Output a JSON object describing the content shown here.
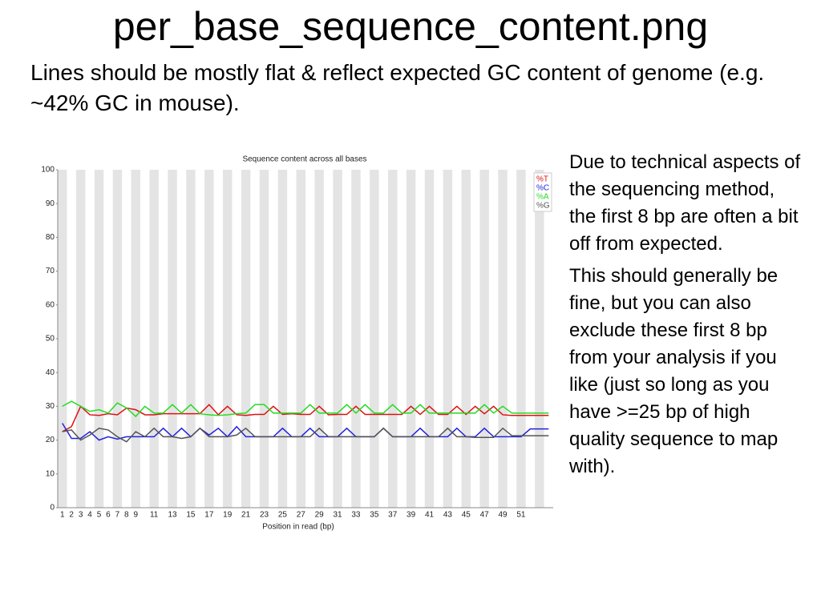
{
  "slide": {
    "title": "per_base_sequence_content.png",
    "subtitle": "Lines should be mostly flat & reflect expected GC content of genome (e.g. ~42% GC in mouse).",
    "notes": [
      "Due to technical aspects of the sequencing method, the first 8 bp are often a bit off from expected.",
      "This should generally be fine, but you can also exclude these first 8 bp from your analysis if you like (just so long as you have >=25 bp of high quality sequence to map with)."
    ]
  },
  "chart_data": {
    "type": "line",
    "title": "Sequence content across all bases",
    "x_label": "Position in read (bp)",
    "categories": [
      1,
      2,
      3,
      4,
      5,
      6,
      7,
      8,
      9,
      null,
      11,
      null,
      13,
      null,
      15,
      null,
      17,
      null,
      19,
      null,
      21,
      null,
      23,
      null,
      25,
      null,
      27,
      null,
      29,
      null,
      31,
      null,
      33,
      null,
      35,
      null,
      37,
      null,
      39,
      null,
      41,
      null,
      43,
      null,
      45,
      null,
      47,
      null,
      49,
      null,
      51,
      null,
      null,
      null
    ],
    "ylim": [
      0,
      100
    ],
    "yticks": [
      0,
      10,
      20,
      30,
      40,
      50,
      60,
      70,
      80,
      90,
      100
    ],
    "legend": "top-right",
    "stripes": true,
    "series": [
      {
        "name": "%T",
        "color": "#dd1111",
        "values": [
          22.5,
          24,
          30,
          27.5,
          27.3,
          27.8,
          27.5,
          29.5,
          29,
          27.5,
          27.5,
          27.8,
          27.8,
          27.8,
          27.8,
          27.8,
          30.5,
          27.5,
          30,
          27.5,
          27.3,
          27.6,
          27.6,
          30,
          27.6,
          27.8,
          27.6,
          27.6,
          30,
          27.5,
          27.6,
          27.6,
          30,
          27.6,
          27.6,
          27.6,
          27.6,
          27.6,
          30,
          27.6,
          30,
          27.6,
          27.6,
          30,
          27.6,
          30,
          27.8,
          30,
          27.5,
          27.3,
          27.3,
          27.3,
          27.3,
          27.3
        ]
      },
      {
        "name": "%C",
        "color": "#2222dd",
        "values": [
          25,
          20.5,
          20.5,
          22.5,
          20,
          21,
          20.3,
          21,
          21,
          21,
          21,
          23.5,
          21,
          23.5,
          21,
          23.5,
          21.5,
          23.5,
          21,
          24,
          21,
          21,
          21,
          21,
          23.5,
          21,
          21,
          23.5,
          21,
          21,
          21,
          23.5,
          21,
          21,
          21,
          23.5,
          21,
          21,
          21,
          23.5,
          21,
          21,
          21,
          23.5,
          21,
          21,
          23.5,
          21,
          21,
          21,
          21,
          23.3,
          23.3,
          23.3
        ]
      },
      {
        "name": "%A",
        "color": "#22dd22",
        "values": [
          30,
          31.5,
          30,
          28.5,
          29,
          28,
          31,
          29.5,
          27,
          30,
          28,
          28,
          30.5,
          28,
          30.5,
          27.8,
          27.5,
          27.3,
          27.5,
          27.8,
          28,
          30.5,
          30.5,
          28,
          28,
          28,
          28,
          30.5,
          28,
          28,
          28,
          30.5,
          28,
          30.5,
          28,
          28,
          30.5,
          28,
          28,
          30.5,
          28,
          28,
          28,
          28,
          28,
          28,
          30.5,
          28,
          30,
          28,
          28,
          28,
          28,
          28
        ]
      },
      {
        "name": "%G",
        "color": "#555555",
        "values": [
          22.5,
          23,
          20,
          21.5,
          23.5,
          23,
          21,
          19.5,
          22.5,
          21,
          23.5,
          21,
          21,
          20.5,
          21,
          23.5,
          21,
          21,
          21,
          21.5,
          23.5,
          21,
          21,
          21,
          21,
          21,
          21,
          21,
          23.5,
          21,
          21,
          21,
          21,
          21,
          21,
          23.5,
          21,
          21,
          21,
          21,
          21,
          21,
          23.5,
          21,
          21,
          20.8,
          20.8,
          20.8,
          23.5,
          21.3,
          21.3,
          21.3,
          21.3,
          21.3
        ]
      }
    ]
  }
}
